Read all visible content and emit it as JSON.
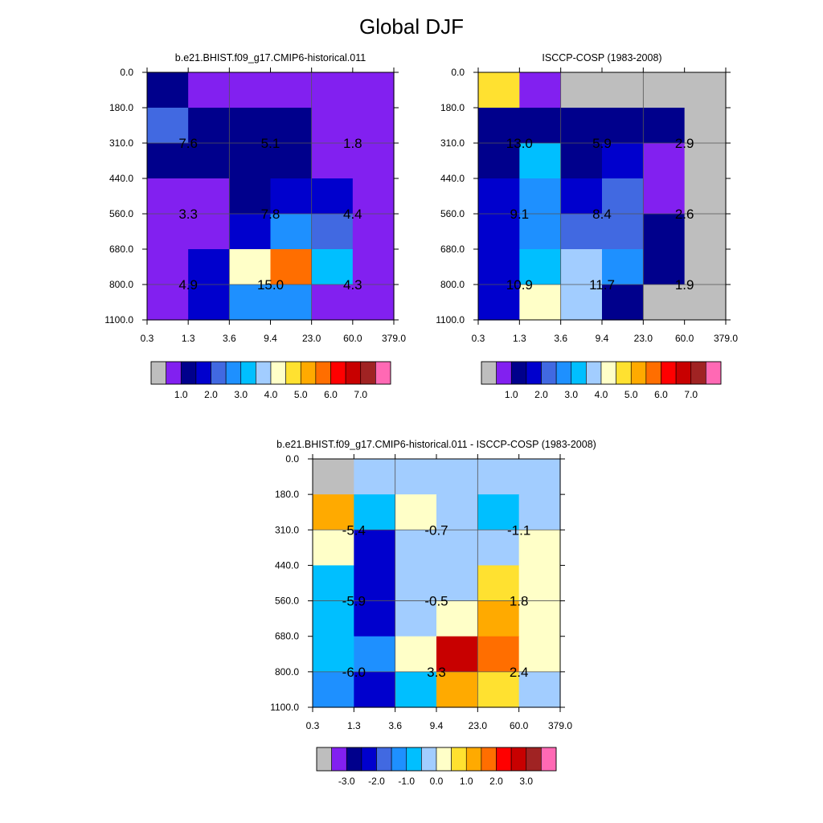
{
  "title": "Global DJF",
  "colors": {
    "missing": "#BEBEBE",
    "palette": [
      "#8220F0",
      "#00008C",
      "#0000CD",
      "#4169E1",
      "#1E90FF",
      "#00BFFF",
      "#A2CDFF",
      "#FFFFC8",
      "#FFE130",
      "#FFAA00",
      "#FF6E00",
      "#FF0000",
      "#C80000",
      "#A02323",
      "#FF69B4"
    ]
  },
  "chart_data": [
    {
      "id": "model",
      "type": "heatmap",
      "title": "b.e21.BHIST.f09_g17.CMIP6-historical.011",
      "x_ticks": [
        "0.3",
        "1.3",
        "3.6",
        "9.4",
        "23.0",
        "60.0",
        "379.0"
      ],
      "y_ticks": [
        "0.0",
        "180.0",
        "310.0",
        "440.0",
        "560.0",
        "680.0",
        "800.0",
        "1100.0"
      ],
      "cells": [
        [
          1,
          0,
          0,
          0,
          0,
          0
        ],
        [
          3,
          1,
          1,
          1,
          0,
          0
        ],
        [
          1,
          1,
          1,
          1,
          0,
          0
        ],
        [
          0,
          0,
          1,
          2,
          2,
          0
        ],
        [
          0,
          0,
          2,
          4,
          3,
          0
        ],
        [
          0,
          2,
          7,
          10,
          5,
          0
        ],
        [
          0,
          2,
          4,
          4,
          0,
          0
        ]
      ],
      "labels": [
        {
          "col": 0.5,
          "row": 1.5,
          "text": "7.6"
        },
        {
          "col": 2.5,
          "row": 1.5,
          "text": "5.1"
        },
        {
          "col": 4.5,
          "row": 1.5,
          "text": "1.8"
        },
        {
          "col": 0.5,
          "row": 3.5,
          "text": "3.3"
        },
        {
          "col": 2.5,
          "row": 3.5,
          "text": "7.8"
        },
        {
          "col": 4.5,
          "row": 3.5,
          "text": "4.4"
        },
        {
          "col": 0.5,
          "row": 5.5,
          "text": "4.9"
        },
        {
          "col": 2.5,
          "row": 5.5,
          "text": "15.0"
        },
        {
          "col": 4.5,
          "row": 5.5,
          "text": "4.3"
        }
      ],
      "colorbar": {
        "boxes": [
          "missing",
          0,
          1,
          2,
          3,
          4,
          5,
          6,
          7,
          8,
          9,
          10,
          11,
          12,
          13,
          14
        ],
        "labels": [
          "1.0",
          "2.0",
          "3.0",
          "4.0",
          "5.0",
          "6.0",
          "7.0"
        ]
      }
    },
    {
      "id": "obs",
      "type": "heatmap",
      "title": "ISCCP-COSP (1983-2008)",
      "x_ticks": [
        "0.3",
        "1.3",
        "3.6",
        "9.4",
        "23.0",
        "60.0",
        "379.0"
      ],
      "y_ticks": [
        "0.0",
        "180.0",
        "310.0",
        "440.0",
        "560.0",
        "680.0",
        "800.0",
        "1100.0"
      ],
      "cells": [
        [
          8,
          0,
          "missing",
          "missing",
          "missing",
          "missing"
        ],
        [
          1,
          1,
          1,
          1,
          1,
          "missing"
        ],
        [
          1,
          5,
          1,
          2,
          0,
          "missing"
        ],
        [
          2,
          4,
          2,
          3,
          0,
          "missing"
        ],
        [
          2,
          4,
          3,
          3,
          1,
          "missing"
        ],
        [
          2,
          5,
          6,
          4,
          1,
          "missing"
        ],
        [
          2,
          7,
          6,
          1,
          "missing",
          "missing"
        ]
      ],
      "labels": [
        {
          "col": 0.5,
          "row": 1.5,
          "text": "13.0"
        },
        {
          "col": 2.5,
          "row": 1.5,
          "text": "5.9"
        },
        {
          "col": 4.5,
          "row": 1.5,
          "text": "2.9"
        },
        {
          "col": 0.5,
          "row": 3.5,
          "text": "9.1"
        },
        {
          "col": 2.5,
          "row": 3.5,
          "text": "8.4"
        },
        {
          "col": 4.5,
          "row": 3.5,
          "text": "2.6"
        },
        {
          "col": 0.5,
          "row": 5.5,
          "text": "10.9"
        },
        {
          "col": 2.5,
          "row": 5.5,
          "text": "11.7"
        },
        {
          "col": 4.5,
          "row": 5.5,
          "text": "1.9"
        }
      ],
      "colorbar": {
        "boxes": [
          "missing",
          0,
          1,
          2,
          3,
          4,
          5,
          6,
          7,
          8,
          9,
          10,
          11,
          12,
          13,
          14
        ],
        "labels": [
          "1.0",
          "2.0",
          "3.0",
          "4.0",
          "5.0",
          "6.0",
          "7.0"
        ]
      }
    },
    {
      "id": "diff",
      "type": "heatmap",
      "title": "b.e21.BHIST.f09_g17.CMIP6-historical.011 - ISCCP-COSP (1983-2008)",
      "x_ticks": [
        "0.3",
        "1.3",
        "3.6",
        "9.4",
        "23.0",
        "60.0",
        "379.0"
      ],
      "y_ticks": [
        "0.0",
        "180.0",
        "310.0",
        "440.0",
        "560.0",
        "680.0",
        "800.0",
        "1100.0"
      ],
      "cells": [
        [
          "missing",
          6,
          6,
          6,
          6,
          6
        ],
        [
          9,
          5,
          7,
          6,
          5,
          6
        ],
        [
          7,
          2,
          6,
          6,
          6,
          7
        ],
        [
          5,
          2,
          6,
          6,
          8,
          7
        ],
        [
          5,
          2,
          6,
          7,
          9,
          7
        ],
        [
          5,
          4,
          7,
          12,
          10,
          7
        ],
        [
          4,
          2,
          5,
          9,
          8,
          6
        ]
      ],
      "labels": [
        {
          "col": 0.5,
          "row": 1.5,
          "text": "-5.4"
        },
        {
          "col": 2.5,
          "row": 1.5,
          "text": "-0.7"
        },
        {
          "col": 4.5,
          "row": 1.5,
          "text": "-1.1"
        },
        {
          "col": 0.5,
          "row": 3.5,
          "text": "-5.9"
        },
        {
          "col": 2.5,
          "row": 3.5,
          "text": "-0.5"
        },
        {
          "col": 4.5,
          "row": 3.5,
          "text": "1.8"
        },
        {
          "col": 0.5,
          "row": 5.5,
          "text": "-6.0"
        },
        {
          "col": 2.5,
          "row": 5.5,
          "text": "3.3"
        },
        {
          "col": 4.5,
          "row": 5.5,
          "text": "2.4"
        }
      ],
      "colorbar": {
        "boxes": [
          "missing",
          0,
          1,
          2,
          3,
          4,
          5,
          6,
          7,
          8,
          9,
          10,
          11,
          12,
          13,
          14
        ],
        "labels": [
          "-3.0",
          "-2.0",
          "-1.0",
          "0.0",
          "1.0",
          "2.0",
          "3.0"
        ]
      }
    }
  ]
}
